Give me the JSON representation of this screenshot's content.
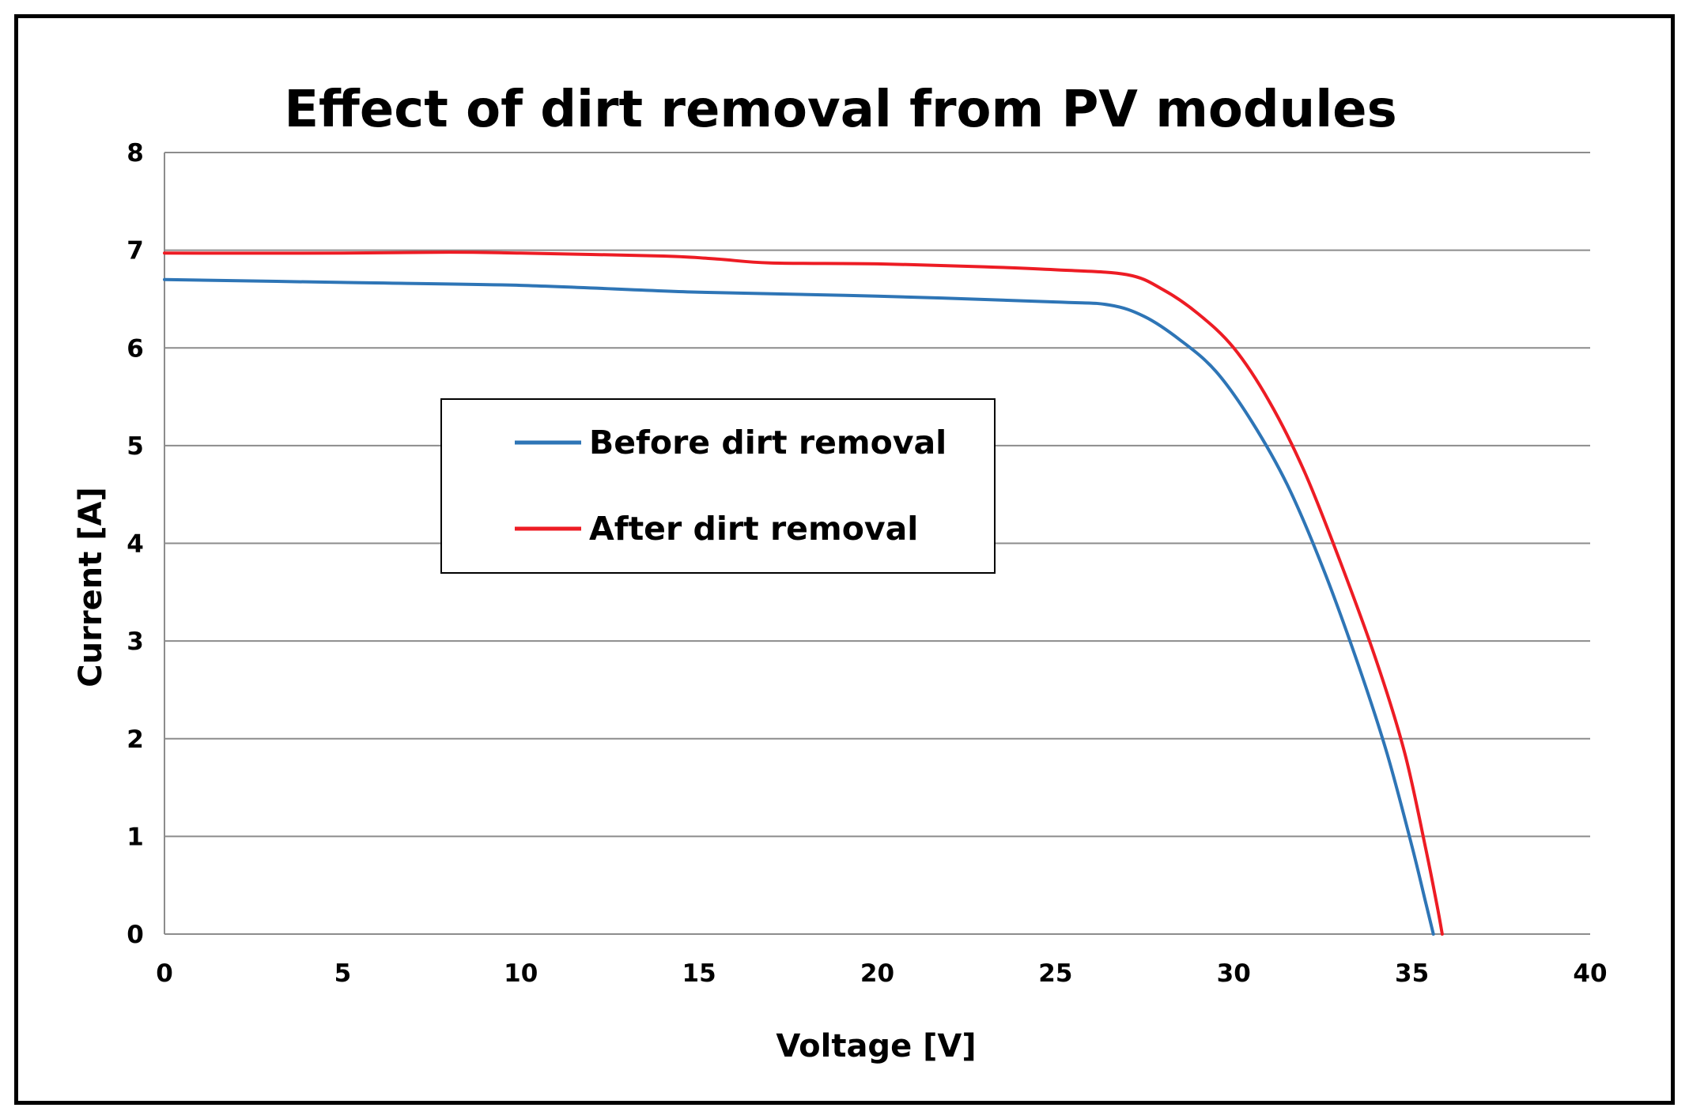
{
  "chart_data": {
    "type": "line",
    "title": "Effect of dirt removal from PV modules",
    "xlabel": "Voltage [V]",
    "ylabel": "Current [A]",
    "xlim": [
      0,
      40
    ],
    "ylim": [
      0,
      8
    ],
    "x_ticks": [
      "0",
      "5",
      "10",
      "15",
      "20",
      "25",
      "30",
      "35",
      "40"
    ],
    "y_ticks": [
      "0",
      "1",
      "2",
      "3",
      "4",
      "5",
      "6",
      "7",
      "8"
    ],
    "grid": "horizontal",
    "legend_placement": "center-left",
    "series": [
      {
        "name": "Before dirt removal",
        "color": "#2e75b6",
        "points": [
          [
            0,
            6.7
          ],
          [
            5,
            6.67
          ],
          [
            10,
            6.64
          ],
          [
            15,
            6.57
          ],
          [
            20,
            6.53
          ],
          [
            25,
            6.47
          ],
          [
            26.5,
            6.44
          ],
          [
            27.5,
            6.32
          ],
          [
            28.5,
            6.08
          ],
          [
            29.5,
            5.76
          ],
          [
            30.5,
            5.25
          ],
          [
            31.5,
            4.6
          ],
          [
            32.5,
            3.75
          ],
          [
            33.5,
            2.75
          ],
          [
            34.3,
            1.85
          ],
          [
            35.0,
            0.9
          ],
          [
            35.4,
            0.3
          ],
          [
            35.6,
            0.0
          ]
        ]
      },
      {
        "name": "After dirt removal",
        "color": "#ed1c24",
        "points": [
          [
            0,
            6.97
          ],
          [
            5,
            6.97
          ],
          [
            8,
            6.98
          ],
          [
            10,
            6.97
          ],
          [
            14,
            6.94
          ],
          [
            15.5,
            6.91
          ],
          [
            17,
            6.87
          ],
          [
            20,
            6.86
          ],
          [
            23,
            6.83
          ],
          [
            25,
            6.8
          ],
          [
            27,
            6.75
          ],
          [
            28,
            6.6
          ],
          [
            29,
            6.35
          ],
          [
            30,
            6.0
          ],
          [
            31,
            5.45
          ],
          [
            32,
            4.72
          ],
          [
            33,
            3.8
          ],
          [
            34,
            2.8
          ],
          [
            34.8,
            1.85
          ],
          [
            35.4,
            0.85
          ],
          [
            35.7,
            0.3
          ],
          [
            35.85,
            0.0
          ]
        ]
      }
    ]
  }
}
